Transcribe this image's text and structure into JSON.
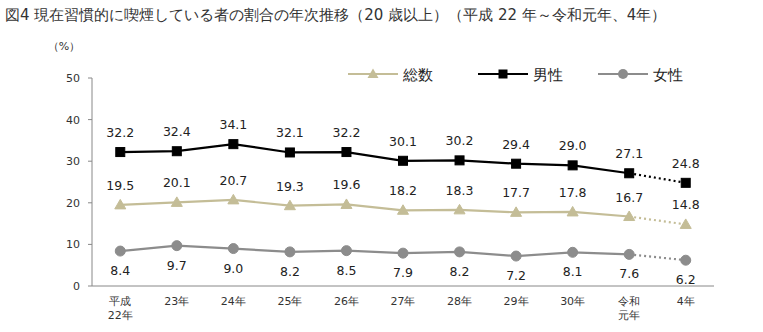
{
  "chart_data": {
    "type": "line",
    "title": "図4  現在習慣的に喫煙している者の割合の年次推移（20 歳以上）（平成 22 年～令和元年、4年）",
    "y_axis_label": "（%）",
    "categories": [
      "平成\n22年",
      "23年",
      "24年",
      "25年",
      "26年",
      "27年",
      "28年",
      "29年",
      "30年",
      "令和\n元年",
      "4年"
    ],
    "series": [
      {
        "name": "総数",
        "color": "#c4bd97",
        "marker": "triangle",
        "line_style": "solid",
        "values": [
          19.5,
          20.1,
          20.7,
          19.3,
          19.6,
          18.2,
          18.3,
          17.7,
          17.8,
          16.7,
          14.8
        ],
        "value_labels": [
          "19.5",
          "20.1",
          "20.7",
          "19.3",
          "19.6",
          "18.2",
          "18.3",
          "17.7",
          "17.8",
          "16.7",
          "14.8"
        ]
      },
      {
        "name": "男性",
        "color": "#000000",
        "marker": "square",
        "line_style": "solid",
        "values": [
          32.2,
          32.4,
          34.1,
          32.1,
          32.2,
          30.1,
          30.2,
          29.4,
          29.0,
          27.1,
          24.8
        ],
        "value_labels": [
          "32.2",
          "32.4",
          "34.1",
          "32.1",
          "32.2",
          "30.1",
          "30.2",
          "29.4",
          "29.0",
          "27.1",
          "24.8"
        ]
      },
      {
        "name": "女性",
        "color": "#8c8c8c",
        "marker": "circle",
        "line_style": "solid",
        "values": [
          8.4,
          9.7,
          9.0,
          8.2,
          8.5,
          7.9,
          8.2,
          7.2,
          8.1,
          7.6,
          6.2
        ],
        "value_labels": [
          "8.4",
          "9.7",
          "9.0",
          "8.2",
          "8.5",
          "7.9",
          "8.2",
          "7.2",
          "8.1",
          "7.6",
          "6.2"
        ]
      }
    ],
    "ylim": [
      0,
      50
    ],
    "yticks": [
      0,
      10,
      20,
      30,
      40,
      50
    ],
    "grid": false,
    "legend": "top",
    "data_labels": true
  }
}
